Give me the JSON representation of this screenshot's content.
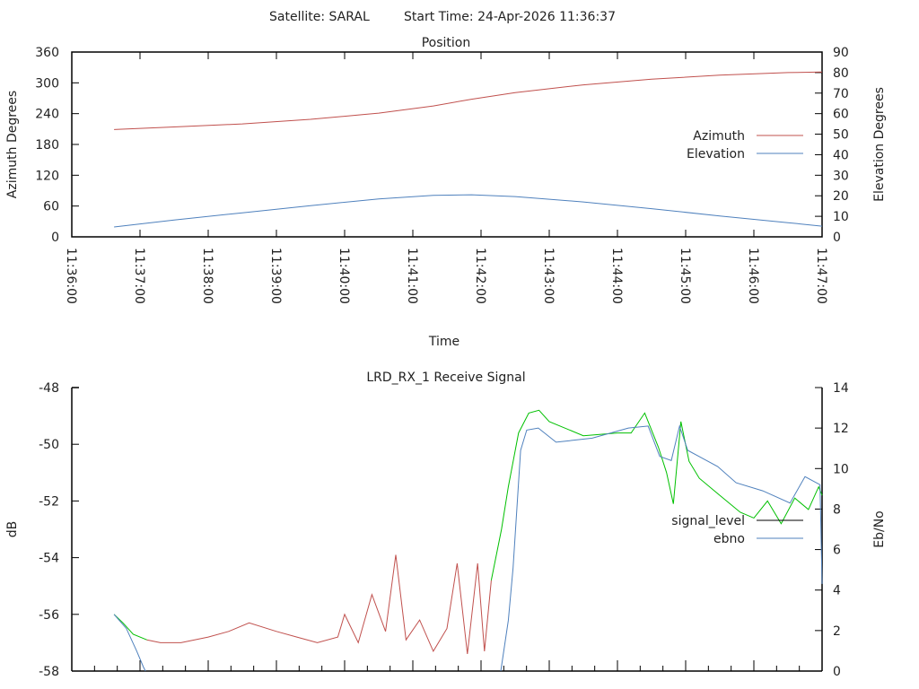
{
  "header": {
    "satellite": "Satellite: SARAL",
    "start_time": "Start Time: 24-Apr-2026 11:36:37"
  },
  "chart_data": [
    {
      "type": "line",
      "title": "Position",
      "xlabel": "Time",
      "ylabel": "Azimuth Degrees",
      "y2label": "Elevation Degrees",
      "xlim_minutes_after_11_36_00": [
        0,
        11
      ],
      "ylim": [
        0,
        360
      ],
      "y2lim": [
        0,
        90
      ],
      "xticks": [
        "11:36:00",
        "11:37:00",
        "11:38:00",
        "11:39:00",
        "11:40:00",
        "11:41:00",
        "11:42:00",
        "11:43:00",
        "11:44:00",
        "11:45:00",
        "11:46:00",
        "11:47:00"
      ],
      "yticks": [
        "0",
        "60",
        "120",
        "180",
        "240",
        "300",
        "360"
      ],
      "y2ticks": [
        "0",
        "10",
        "20",
        "30",
        "40",
        "50",
        "60",
        "70",
        "80",
        "90"
      ],
      "legend_position": "right",
      "series": [
        {
          "name": "Azimuth",
          "axis": "y",
          "color": "#c0504d",
          "points": [
            [
              0.62,
              209
            ],
            [
              1.5,
              214
            ],
            [
              2.5,
              220
            ],
            [
              3.5,
              229
            ],
            [
              4.5,
              241
            ],
            [
              5.3,
              255
            ],
            [
              5.86,
              268
            ],
            [
              6.5,
              281
            ],
            [
              7.5,
              296
            ],
            [
              8.5,
              307
            ],
            [
              9.5,
              315
            ],
            [
              10.5,
              320
            ],
            [
              11.0,
              321
            ]
          ]
        },
        {
          "name": "Elevation",
          "axis": "y2",
          "color": "#4f81bd",
          "points": [
            [
              0.62,
              4.8
            ],
            [
              1.5,
              8.2
            ],
            [
              2.5,
              11.7
            ],
            [
              3.5,
              15.2
            ],
            [
              4.5,
              18.5
            ],
            [
              5.3,
              20.2
            ],
            [
              5.86,
              20.5
            ],
            [
              6.5,
              19.6
            ],
            [
              7.5,
              17.0
            ],
            [
              8.5,
              13.7
            ],
            [
              9.5,
              10.2
            ],
            [
              10.5,
              6.9
            ],
            [
              11.0,
              5.2
            ]
          ]
        }
      ]
    },
    {
      "type": "line",
      "title": "LRD_RX_1 Receive Signal",
      "ylabel": "dB",
      "y2label": "Eb/No",
      "xlim_minutes_after_11_36_00": [
        0,
        11
      ],
      "ylim": [
        -58,
        -48
      ],
      "y2lim": [
        0,
        14
      ],
      "yticks": [
        "-58",
        "-56",
        "-54",
        "-52",
        "-50",
        "-48"
      ],
      "y2ticks": [
        "0",
        "2",
        "4",
        "6",
        "8",
        "10",
        "12",
        "14"
      ],
      "legend_position": "right",
      "series": [
        {
          "name": "signal_level",
          "axis": "y",
          "legend_color": "#000000",
          "segments": [
            {
              "color": "#00c000",
              "points": [
                [
                  0.62,
                  -56.0
                ],
                [
                  0.75,
                  -56.3
                ],
                [
                  0.9,
                  -56.7
                ],
                [
                  1.1,
                  -56.9
                ]
              ]
            },
            {
              "color": "#c0504d",
              "points": [
                [
                  1.1,
                  -56.9
                ],
                [
                  1.3,
                  -57.0
                ],
                [
                  1.6,
                  -57.0
                ],
                [
                  2.0,
                  -56.8
                ],
                [
                  2.3,
                  -56.6
                ],
                [
                  2.6,
                  -56.3
                ],
                [
                  3.0,
                  -56.6
                ],
                [
                  3.3,
                  -56.8
                ],
                [
                  3.6,
                  -57.0
                ],
                [
                  3.9,
                  -56.8
                ],
                [
                  4.0,
                  -56.0
                ],
                [
                  4.2,
                  -57.0
                ],
                [
                  4.4,
                  -55.3
                ],
                [
                  4.6,
                  -56.6
                ],
                [
                  4.75,
                  -53.9
                ],
                [
                  4.9,
                  -56.9
                ],
                [
                  5.1,
                  -56.2
                ],
                [
                  5.3,
                  -57.3
                ],
                [
                  5.5,
                  -56.5
                ],
                [
                  5.65,
                  -54.2
                ],
                [
                  5.8,
                  -57.4
                ],
                [
                  5.95,
                  -54.2
                ],
                [
                  6.05,
                  -57.3
                ],
                [
                  6.15,
                  -54.8
                ]
              ]
            },
            {
              "color": "#00c000",
              "points": [
                [
                  6.15,
                  -54.8
                ],
                [
                  6.3,
                  -53.0
                ],
                [
                  6.4,
                  -51.5
                ],
                [
                  6.55,
                  -49.6
                ],
                [
                  6.7,
                  -48.9
                ],
                [
                  6.85,
                  -48.8
                ],
                [
                  7.0,
                  -49.2
                ],
                [
                  7.5,
                  -49.7
                ],
                [
                  8.0,
                  -49.6
                ],
                [
                  8.2,
                  -49.6
                ],
                [
                  8.4,
                  -48.9
                ],
                [
                  8.6,
                  -50.1
                ],
                [
                  8.72,
                  -51.0
                ],
                [
                  8.82,
                  -52.1
                ],
                [
                  8.93,
                  -49.2
                ],
                [
                  9.05,
                  -50.6
                ],
                [
                  9.2,
                  -51.2
                ],
                [
                  9.5,
                  -51.8
                ],
                [
                  9.8,
                  -52.4
                ],
                [
                  10.0,
                  -52.6
                ],
                [
                  10.2,
                  -52.0
                ],
                [
                  10.4,
                  -52.8
                ],
                [
                  10.6,
                  -51.9
                ],
                [
                  10.8,
                  -52.3
                ],
                [
                  10.95,
                  -51.5
                ],
                [
                  11.0,
                  -51.8
                ]
              ]
            }
          ]
        },
        {
          "name": "ebno",
          "axis": "y2",
          "color": "#4f81bd",
          "segments": [
            {
              "color": "#4f81bd",
              "points": [
                [
                  0.62,
                  2.8
                ],
                [
                  0.8,
                  2.1
                ],
                [
                  0.95,
                  1.0
                ],
                [
                  1.05,
                  0.2
                ],
                [
                  1.08,
                  0
                ]
              ]
            },
            {
              "color": "#4f81bd",
              "points": [
                [
                  6.29,
                  0
                ],
                [
                  6.4,
                  2.5
                ],
                [
                  6.47,
                  5.1
                ],
                [
                  6.58,
                  10.9
                ],
                [
                  6.67,
                  11.9
                ],
                [
                  6.84,
                  12.0
                ],
                [
                  7.1,
                  11.3
                ],
                [
                  7.63,
                  11.5
                ],
                [
                  8.16,
                  12.0
                ],
                [
                  8.45,
                  12.1
                ],
                [
                  8.62,
                  10.6
                ],
                [
                  8.79,
                  10.4
                ],
                [
                  8.91,
                  12.1
                ],
                [
                  9.03,
                  10.9
                ],
                [
                  9.47,
                  10.1
                ],
                [
                  9.74,
                  9.3
                ],
                [
                  10.13,
                  8.9
                ],
                [
                  10.53,
                  8.3
                ],
                [
                  10.75,
                  9.6
                ],
                [
                  10.97,
                  9.2
                ],
                [
                  11.0,
                  4.3
                ]
              ]
            }
          ]
        }
      ]
    }
  ]
}
